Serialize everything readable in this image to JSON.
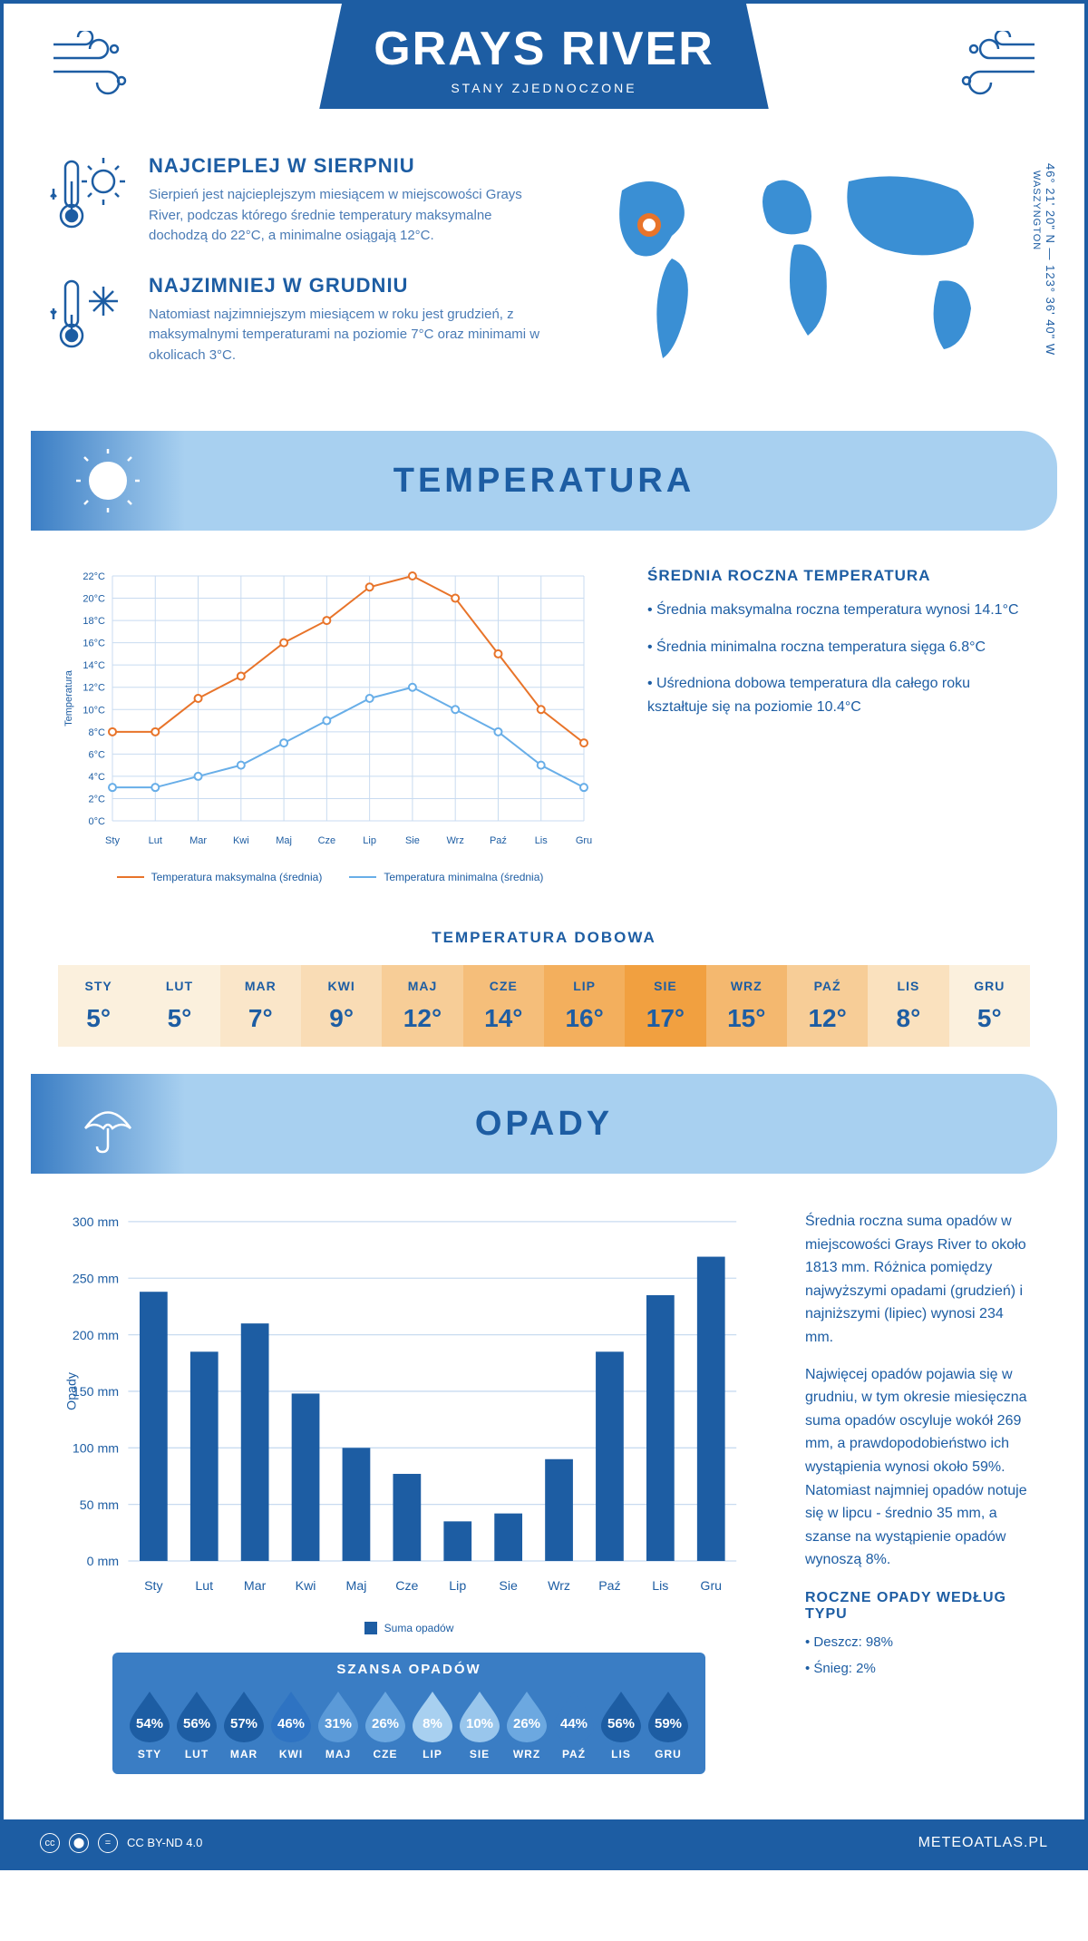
{
  "header": {
    "title": "GRAYS RIVER",
    "subtitle": "STANY ZJEDNOCZONE"
  },
  "facts": {
    "warmest": {
      "heading": "NAJCIEPLEJ W SIERPNIU",
      "text": "Sierpień jest najcieplejszym miesiącem w miejscowości Grays River, podczas którego średnie temperatury maksymalne dochodzą do 22°C, a minimalne osiągają 12°C."
    },
    "coldest": {
      "heading": "NAJZIMNIEJ W GRUDNIU",
      "text": "Natomiast najzimniejszym miesiącem w roku jest grudzień, z maksymalnymi temperaturami na poziomie 7°C oraz minimami w okolicach 3°C."
    }
  },
  "coords": {
    "lat": "46° 21' 20\" N",
    "lon": "123° 36' 40\" W",
    "region": "WASZYNGTON"
  },
  "sections": {
    "temperature": "TEMPERATURA",
    "precipitation": "OPADY"
  },
  "temp_chart": {
    "type": "line",
    "months": [
      "Sty",
      "Lut",
      "Mar",
      "Kwi",
      "Maj",
      "Cze",
      "Lip",
      "Sie",
      "Wrz",
      "Paź",
      "Lis",
      "Gru"
    ],
    "max_series": [
      8,
      8,
      11,
      13,
      16,
      18,
      21,
      22,
      20,
      15,
      10,
      7
    ],
    "min_series": [
      3,
      3,
      4,
      5,
      7,
      9,
      11,
      12,
      10,
      8,
      5,
      3
    ],
    "ylabel": "Temperatura",
    "ylim": [
      0,
      22
    ],
    "ytick_step": 2,
    "max_color": "#e8742a",
    "min_color": "#68aee8",
    "grid_color": "#c8dbf0",
    "background": "#ffffff",
    "line_width": 2,
    "marker_size": 4,
    "legend_max": "Temperatura maksymalna (średnia)",
    "legend_min": "Temperatura minimalna (średnia)"
  },
  "temp_side": {
    "heading": "ŚREDNIA ROCZNA TEMPERATURA",
    "bullets": [
      "• Średnia maksymalna roczna temperatura wynosi 14.1°C",
      "• Średnia minimalna roczna temperatura sięga 6.8°C",
      "• Uśredniona dobowa temperatura dla całego roku kształtuje się na poziomie 10.4°C"
    ]
  },
  "daily_temp": {
    "title": "TEMPERATURA DOBOWA",
    "months": [
      "STY",
      "LUT",
      "MAR",
      "KWI",
      "MAJ",
      "CZE",
      "LIP",
      "SIE",
      "WRZ",
      "PAŹ",
      "LIS",
      "GRU"
    ],
    "values": [
      "5°",
      "5°",
      "7°",
      "9°",
      "12°",
      "14°",
      "16°",
      "17°",
      "15°",
      "12°",
      "8°",
      "5°"
    ],
    "colors": [
      "#fbf0dd",
      "#fbf0dd",
      "#fae6c9",
      "#f9dcb5",
      "#f7cd97",
      "#f5be7a",
      "#f3af5d",
      "#f1a040",
      "#f4b86f",
      "#f7cd97",
      "#fae1be",
      "#fbf0dd"
    ],
    "text_color": "#1d5da3"
  },
  "precip_chart": {
    "type": "bar",
    "months": [
      "Sty",
      "Lut",
      "Mar",
      "Kwi",
      "Maj",
      "Cze",
      "Lip",
      "Sie",
      "Wrz",
      "Paź",
      "Lis",
      "Gru"
    ],
    "values": [
      238,
      185,
      210,
      148,
      100,
      77,
      35,
      42,
      90,
      185,
      235,
      269
    ],
    "ylabel": "Opady",
    "ylim": [
      0,
      300
    ],
    "ytick_step": 50,
    "bar_color": "#1d5da3",
    "grid_color": "#c8dbf0",
    "bar_width": 0.55,
    "legend": "Suma opadów"
  },
  "precip_side": {
    "para1": "Średnia roczna suma opadów w miejscowości Grays River to około 1813 mm. Różnica pomiędzy najwyższymi opadami (grudzień) i najniższymi (lipiec) wynosi 234 mm.",
    "para2": "Najwięcej opadów pojawia się w grudniu, w tym okresie miesięczna suma opadów oscyluje wokół 269 mm, a prawdopodobieństwo ich wystąpienia wynosi około 59%. Natomiast najmniej opadów notuje się w lipcu - średnio 35 mm, a szanse na wystąpienie opadów wynoszą 8%."
  },
  "rain_chance": {
    "title": "SZANSA OPADÓW",
    "months": [
      "STY",
      "LUT",
      "MAR",
      "KWI",
      "MAJ",
      "CZE",
      "LIP",
      "SIE",
      "WRZ",
      "PAŹ",
      "LIS",
      "GRU"
    ],
    "percents": [
      "54%",
      "56%",
      "57%",
      "46%",
      "31%",
      "26%",
      "8%",
      "10%",
      "26%",
      "44%",
      "56%",
      "59%"
    ],
    "drop_colors": [
      "#1d5da3",
      "#1d5da3",
      "#1d5da3",
      "#2e73c2",
      "#5b9ad8",
      "#6ca8e0",
      "#a8d0f0",
      "#99c6ec",
      "#6ca8e0",
      "#3a7dc4",
      "#1d5da3",
      "#1d5da3"
    ]
  },
  "precip_types": {
    "heading": "ROCZNE OPADY WEDŁUG TYPU",
    "rain": "• Deszcz: 98%",
    "snow": "• Śnieg: 2%"
  },
  "footer": {
    "license": "CC BY-ND 4.0",
    "site": "METEOATLAS.PL"
  }
}
